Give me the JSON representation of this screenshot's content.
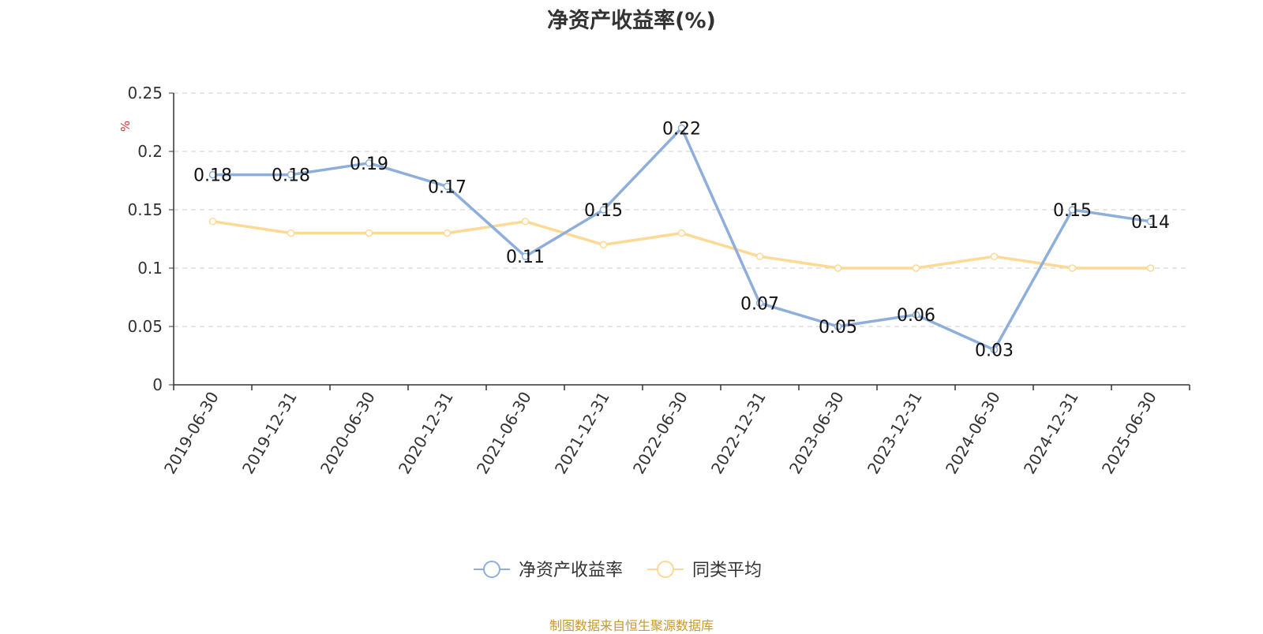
{
  "chart_data": {
    "type": "line",
    "title": "净资产收益率(%)",
    "ylabel": "%",
    "ylim": [
      0,
      0.25
    ],
    "yticks": [
      0,
      0.05,
      0.1,
      0.15,
      0.2,
      0.25
    ],
    "ytick_labels": [
      "0",
      "0.05",
      "0.1",
      "0.15",
      "0.2",
      "0.25"
    ],
    "grid": true,
    "legend_position": "bottom",
    "categories": [
      "2019-06-30",
      "2019-12-31",
      "2020-06-30",
      "2020-12-31",
      "2021-06-30",
      "2021-12-31",
      "2022-06-30",
      "2022-12-31",
      "2023-06-30",
      "2023-12-31",
      "2024-06-30",
      "2024-12-31",
      "2025-06-30"
    ],
    "series": [
      {
        "name": "净资产收益率",
        "color": "#8eaedb",
        "values": [
          0.18,
          0.18,
          0.19,
          0.17,
          0.11,
          0.15,
          0.22,
          0.07,
          0.05,
          0.06,
          0.03,
          0.15,
          0.14
        ],
        "labels": [
          "0.18",
          "0.18",
          "0.19",
          "0.17",
          "0.11",
          "0.15",
          "0.22",
          "0.07",
          "0.05",
          "0.06",
          "0.03",
          "0.15",
          "0.14"
        ]
      },
      {
        "name": "同类平均",
        "color": "#fcd994",
        "values": [
          0.14,
          0.13,
          0.13,
          0.13,
          0.14,
          0.12,
          0.13,
          0.11,
          0.1,
          0.1,
          0.11,
          0.1,
          0.1
        ]
      }
    ]
  },
  "footer": "制图数据来自恒生聚源数据库"
}
